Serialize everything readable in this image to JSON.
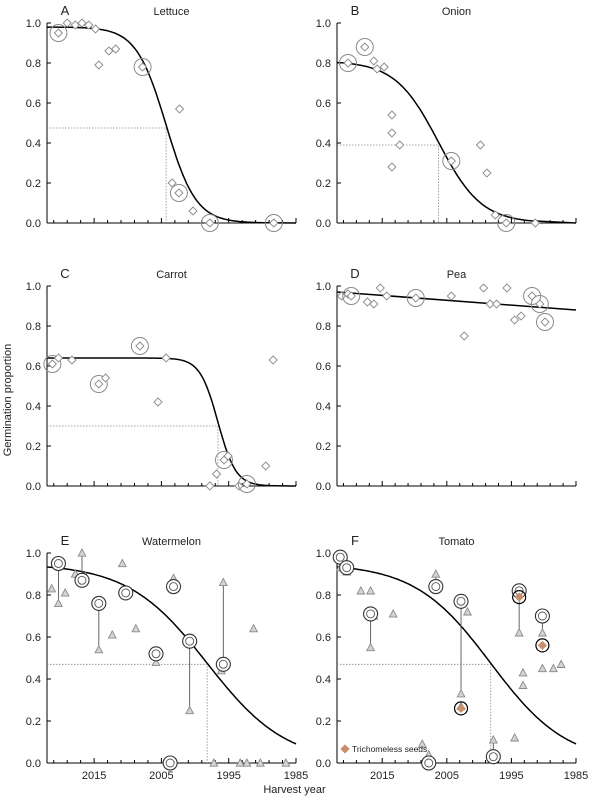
{
  "figure": {
    "ylabel": "Germination proportion",
    "xlabel": "Harvest year",
    "legend_label": "Trichomeless seeds",
    "colors": {
      "curve": "#000000",
      "marker": "#8a8a8a",
      "triangle_fill": "#d4d4d4",
      "trichomeless": "#c8906a",
      "guide": "#8a8a8a"
    }
  },
  "chart_data": [
    {
      "panel": "A",
      "title": "Lettuce",
      "type": "scatter",
      "xlim": [
        2022,
        1985
      ],
      "ylim": [
        0,
        1
      ],
      "xticks": [
        2015,
        2005,
        1995,
        1985
      ],
      "yticks": [
        0.0,
        0.2,
        0.4,
        0.6,
        0.8,
        1.0
      ],
      "x_tick_labels": [],
      "y_tick_labels": [
        "0.0",
        "0.2",
        "0.4",
        "0.6",
        "0.8",
        "1.0"
      ],
      "curve": {
        "type": "logistic",
        "top": 0.98,
        "x50": 2004.3,
        "k": 0.45,
        "tail": 1987
      },
      "guide": {
        "x": 2004.3,
        "y": 0.475
      },
      "points": [
        {
          "x": 2020.3,
          "y": 0.95,
          "circled": true
        },
        {
          "x": 2019,
          "y": 1.0
        },
        {
          "x": 2017.8,
          "y": 0.99
        },
        {
          "x": 2016.8,
          "y": 1.0
        },
        {
          "x": 2015.8,
          "y": 0.99
        },
        {
          "x": 2014.8,
          "y": 0.97
        },
        {
          "x": 2014.3,
          "y": 0.79
        },
        {
          "x": 2012.8,
          "y": 0.86
        },
        {
          "x": 2011.8,
          "y": 0.87
        },
        {
          "x": 2007.8,
          "y": 0.78,
          "circled": true
        },
        {
          "x": 2002.3,
          "y": 0.57
        },
        {
          "x": 2003.4,
          "y": 0.2
        },
        {
          "x": 2002.4,
          "y": 0.15,
          "circled": true
        },
        {
          "x": 2000.3,
          "y": 0.06
        },
        {
          "x": 1997.8,
          "y": 0.0,
          "circled": true
        },
        {
          "x": 1988.3,
          "y": 0.0,
          "circled": true
        }
      ]
    },
    {
      "panel": "B",
      "title": "Onion",
      "type": "scatter",
      "xlim": [
        2022,
        1985
      ],
      "ylim": [
        0,
        1
      ],
      "xticks": [
        2015,
        2005,
        1995,
        1985
      ],
      "yticks": [
        0.0,
        0.2,
        0.4,
        0.6,
        0.8,
        1.0
      ],
      "x_tick_labels": [],
      "y_tick_labels": [
        "0.0",
        "0.2",
        "0.4",
        "0.6",
        "0.8",
        "1.0"
      ],
      "curve": {
        "type": "logistic",
        "top": 0.81,
        "x50": 2006.3,
        "k": 0.3,
        "tail": 1992
      },
      "guide": {
        "x": 2006.3,
        "y": 0.39
      },
      "points": [
        {
          "x": 2020.3,
          "y": 0.8,
          "circled": true
        },
        {
          "x": 2017.7,
          "y": 0.88,
          "circled": true
        },
        {
          "x": 2016.3,
          "y": 0.81
        },
        {
          "x": 2015.8,
          "y": 0.77
        },
        {
          "x": 2014.7,
          "y": 0.78
        },
        {
          "x": 2013.5,
          "y": 0.54
        },
        {
          "x": 2013.5,
          "y": 0.45
        },
        {
          "x": 2012.3,
          "y": 0.39
        },
        {
          "x": 2013.5,
          "y": 0.28
        },
        {
          "x": 2004.3,
          "y": 0.31,
          "circled": true
        },
        {
          "x": 1999.8,
          "y": 0.39
        },
        {
          "x": 1998.8,
          "y": 0.25
        },
        {
          "x": 1997.5,
          "y": 0.04
        },
        {
          "x": 1995.8,
          "y": 0.0,
          "circled": true
        },
        {
          "x": 1991.3,
          "y": 0.0
        }
      ]
    },
    {
      "panel": "C",
      "title": "Carrot",
      "type": "scatter",
      "xlim": [
        2022,
        1985
      ],
      "ylim": [
        0,
        1
      ],
      "xticks": [
        2015,
        2005,
        1995,
        1985
      ],
      "yticks": [
        0.0,
        0.2,
        0.4,
        0.6,
        0.8,
        1.0
      ],
      "x_tick_labels": [],
      "y_tick_labels": [
        "0.0",
        "0.2",
        "0.4",
        "0.6",
        "0.8",
        "1.0"
      ],
      "curve": {
        "type": "logistic",
        "top": 0.64,
        "x50": 1996.6,
        "k": 0.75,
        "tail": 1985
      },
      "guide": {
        "x": 1996.6,
        "y": 0.3
      },
      "points": [
        {
          "x": 2021.2,
          "y": 0.61,
          "circled": true
        },
        {
          "x": 2020.3,
          "y": 0.64
        },
        {
          "x": 2018.3,
          "y": 0.63
        },
        {
          "x": 2014.3,
          "y": 0.51,
          "circled": true
        },
        {
          "x": 2013.3,
          "y": 0.54
        },
        {
          "x": 2008.2,
          "y": 0.7,
          "circled": true
        },
        {
          "x": 2004.3,
          "y": 0.64
        },
        {
          "x": 2005.5,
          "y": 0.42
        },
        {
          "x": 1997.8,
          "y": 0.0
        },
        {
          "x": 1996.8,
          "y": 0.06
        },
        {
          "x": 1995.7,
          "y": 0.13,
          "circled": true
        },
        {
          "x": 1995.1,
          "y": 0.15
        },
        {
          "x": 1993.5,
          "y": 0.0
        },
        {
          "x": 1992.3,
          "y": 0.01,
          "circled": true
        },
        {
          "x": 1989.5,
          "y": 0.1
        },
        {
          "x": 1988.4,
          "y": 0.63
        }
      ]
    },
    {
      "panel": "D",
      "title": "Pea",
      "type": "scatter",
      "xlim": [
        2022,
        1985
      ],
      "ylim": [
        0,
        1
      ],
      "xticks": [
        2015,
        2005,
        1995,
        1985
      ],
      "yticks": [
        0.0,
        0.2,
        0.4,
        0.6,
        0.8,
        1.0
      ],
      "x_tick_labels": [],
      "y_tick_labels": [
        "0.0",
        "0.2",
        "0.4",
        "0.6",
        "0.8",
        "1.0"
      ],
      "curve": {
        "type": "linear",
        "y_start": 0.97,
        "y_end": 0.88
      },
      "points": [
        {
          "x": 2021.3,
          "y": 0.95
        },
        {
          "x": 2020.3,
          "y": 0.96
        },
        {
          "x": 2019.8,
          "y": 0.95,
          "circled": true
        },
        {
          "x": 2017.3,
          "y": 0.92
        },
        {
          "x": 2016.3,
          "y": 0.91
        },
        {
          "x": 2015.3,
          "y": 0.99
        },
        {
          "x": 2014.3,
          "y": 0.95
        },
        {
          "x": 2009.8,
          "y": 0.94,
          "circled": true
        },
        {
          "x": 2004.3,
          "y": 0.95
        },
        {
          "x": 2002.3,
          "y": 0.75
        },
        {
          "x": 1999.3,
          "y": 0.99
        },
        {
          "x": 1998.3,
          "y": 0.91
        },
        {
          "x": 1997.3,
          "y": 0.91
        },
        {
          "x": 1995.7,
          "y": 0.99
        },
        {
          "x": 1994.5,
          "y": 0.83
        },
        {
          "x": 1993.5,
          "y": 0.85
        },
        {
          "x": 1991.8,
          "y": 0.95,
          "circled": true
        },
        {
          "x": 1990.6,
          "y": 0.91,
          "circled": true
        },
        {
          "x": 1989.8,
          "y": 0.82,
          "circled": true
        }
      ]
    },
    {
      "panel": "E",
      "title": "Watermelon",
      "type": "scatter",
      "xlim": [
        2022,
        1985
      ],
      "ylim": [
        0,
        1
      ],
      "xticks": [
        2015,
        2005,
        1995,
        1985
      ],
      "yticks": [
        0.0,
        0.2,
        0.4,
        0.6,
        0.8,
        1.0
      ],
      "x_tick_labels": [
        "2015",
        "2005",
        "1995",
        "1985"
      ],
      "y_tick_labels": [
        "0.0",
        "0.2",
        "0.4",
        "0.6",
        "0.8",
        "1.0"
      ],
      "curve": {
        "type": "logistic",
        "top": 0.95,
        "x50": 1998.2,
        "k": 0.17,
        "tail": 1985
      },
      "guide": {
        "x": 1998.2,
        "y": 0.47
      },
      "points": [
        {
          "x": 2021.3,
          "y": 0.83
        },
        {
          "x": 2019.3,
          "y": 0.81
        },
        {
          "x": 2017.8,
          "y": 0.9
        },
        {
          "x": 2016.8,
          "y": 0.88
        },
        {
          "x": 2016.3,
          "y": 0.89
        },
        {
          "x": 2012.3,
          "y": 0.61
        },
        {
          "x": 2010.8,
          "y": 0.95
        },
        {
          "x": 2008.8,
          "y": 0.64
        },
        {
          "x": 1997.2,
          "y": 0.0
        },
        {
          "x": 1996.1,
          "y": 0.44
        },
        {
          "x": 1993.3,
          "y": 0.0
        },
        {
          "x": 1992.3,
          "y": 0.0
        },
        {
          "x": 1991.3,
          "y": 0.64
        },
        {
          "x": 1990.3,
          "y": 0.0
        },
        {
          "x": 1986.5,
          "y": 0.0
        }
      ],
      "pairs": [
        {
          "x": 2020.3,
          "y": 0.95,
          "y2": 0.76
        },
        {
          "x": 2016.8,
          "y": 0.87,
          "y2": 1.0
        },
        {
          "x": 2014.3,
          "y": 0.76,
          "y2": 0.54
        },
        {
          "x": 2010.3,
          "y": 0.81,
          "y2": 0.81
        },
        {
          "x": 2005.8,
          "y": 0.52,
          "y2": 0.48
        },
        {
          "x": 2003.7,
          "y": 0.0,
          "y2": 0.0
        },
        {
          "x": 2003.2,
          "y": 0.84,
          "y2": 0.88
        },
        {
          "x": 2000.8,
          "y": 0.58,
          "y2": 0.25
        },
        {
          "x": 1995.8,
          "y": 0.47,
          "y2": 0.86
        }
      ]
    },
    {
      "panel": "F",
      "title": "Tomato",
      "type": "scatter",
      "xlim": [
        2022,
        1985
      ],
      "ylim": [
        0,
        1
      ],
      "xticks": [
        2015,
        2005,
        1995,
        1985
      ],
      "yticks": [
        0.0,
        0.2,
        0.4,
        0.6,
        0.8,
        1.0
      ],
      "x_tick_labels": [
        "2015",
        "2005",
        "1995",
        "1985"
      ],
      "y_tick_labels": [
        "0.0",
        "0.2",
        "0.4",
        "0.6",
        "0.8",
        "1.0"
      ],
      "curve": {
        "type": "logistic",
        "top": 0.95,
        "x50": 1998.2,
        "k": 0.17,
        "tail": 1985
      },
      "guide": {
        "x": 1998.2,
        "y": 0.47
      },
      "points": [
        {
          "x": 2018.3,
          "y": 0.82
        },
        {
          "x": 2016.8,
          "y": 0.82
        },
        {
          "x": 2016.3,
          "y": 0.7
        },
        {
          "x": 2013.3,
          "y": 0.71
        },
        {
          "x": 2008.8,
          "y": 0.09
        },
        {
          "x": 2002.8,
          "y": 0.27
        },
        {
          "x": 2001.8,
          "y": 0.72
        },
        {
          "x": 1994.5,
          "y": 0.12
        },
        {
          "x": 1993.2,
          "y": 0.43
        },
        {
          "x": 1993.2,
          "y": 0.37
        },
        {
          "x": 1990.2,
          "y": 0.45
        },
        {
          "x": 1987.3,
          "y": 0.47
        },
        {
          "x": 1988.5,
          "y": 0.45
        }
      ],
      "pairs": [
        {
          "x": 2021.5,
          "y": 0.98,
          "y2": 0.93
        },
        {
          "x": 2020.5,
          "y": 0.93,
          "y2": 0.91
        },
        {
          "x": 2016.8,
          "y": 0.71,
          "y2": 0.55
        },
        {
          "x": 2007.8,
          "y": 0.0,
          "y2": 0.04
        },
        {
          "x": 2006.7,
          "y": 0.84,
          "y2": 0.9
        },
        {
          "x": 2002.8,
          "y": 0.77,
          "y2": 0.33
        },
        {
          "x": 2002.8,
          "y": 0.26,
          "y2": 0.26,
          "trichomeless": true
        },
        {
          "x": 1997.8,
          "y": 0.03,
          "y2": 0.11
        },
        {
          "x": 1993.8,
          "y": 0.82,
          "y2": 0.62
        },
        {
          "x": 1993.8,
          "y": 0.79,
          "y2": 0.79,
          "trichomeless": true
        },
        {
          "x": 1990.2,
          "y": 0.7,
          "y2": 0.62
        },
        {
          "x": 1990.2,
          "y": 0.56,
          "y2": 0.56,
          "trichomeless": true
        }
      ]
    }
  ]
}
